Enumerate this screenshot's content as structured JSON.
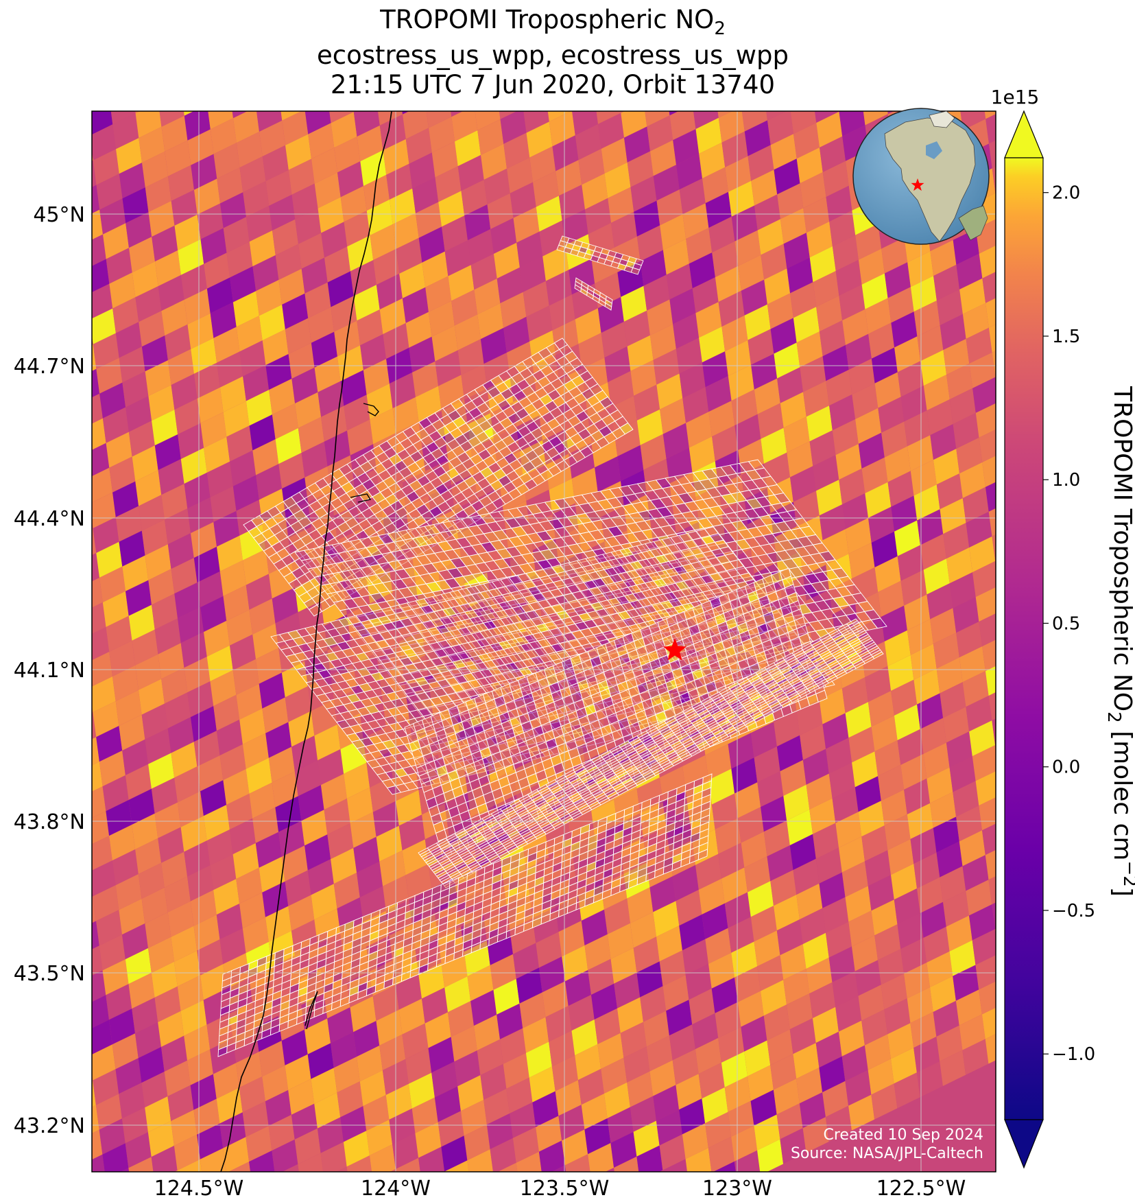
{
  "title": {
    "line1_main": "TROPOMI Tropospheric NO",
    "line1_sub": "2",
    "line2": "ecostress_us_wpp, ecostress_us_wpp",
    "line3": "21:15 UTC 7 Jun 2020, Orbit 13740"
  },
  "axes": {
    "y_ticks": [
      "45°N",
      "44.7°N",
      "44.4°N",
      "44.1°N",
      "43.8°N",
      "43.5°N",
      "43.2°N"
    ],
    "x_ticks": [
      "124.5°W",
      "124°W",
      "123.5°W",
      "123°W",
      "122.5°W"
    ]
  },
  "colorbar": {
    "exponent": "1e15",
    "ticks": [
      "2.0",
      "1.5",
      "1.0",
      "0.5",
      "0.0",
      "−0.5",
      "−1.0"
    ],
    "label_main": "TROPOMI Tropospheric NO",
    "label_sub": "2",
    "label_units": " [molec cm",
    "label_units_sup": "−2",
    "label_close": "]",
    "colormap": "plasma",
    "range": [
      -1.15,
      2.2
    ]
  },
  "credits": {
    "created": "Created 10 Sep 2024",
    "source": "Source: NASA/JPL-Caltech"
  },
  "colors": {
    "star": "#ff0000",
    "grid": "#cccccc",
    "coastline": "#000000",
    "footprint_outline": "#ffffff"
  }
}
